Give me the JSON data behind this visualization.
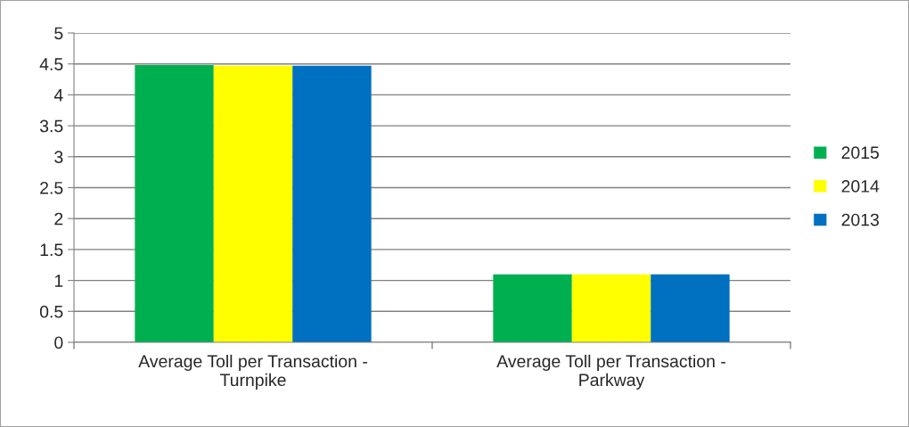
{
  "chart_data": {
    "type": "bar",
    "categories": [
      "Average Toll per Transaction -\nTurnpike",
      "Average Toll per Transaction -\nParkway"
    ],
    "series": [
      {
        "name": "2015",
        "color": "#00b050",
        "values": [
          4.48,
          1.1
        ]
      },
      {
        "name": "2014",
        "color": "#ffff00",
        "values": [
          4.47,
          1.1
        ]
      },
      {
        "name": "2013",
        "color": "#0070c0",
        "values": [
          4.47,
          1.1
        ]
      }
    ],
    "ylim": [
      0,
      5
    ],
    "yticks": [
      0,
      0.5,
      1,
      1.5,
      2,
      2.5,
      3,
      3.5,
      4,
      4.5,
      5
    ],
    "grid": "y",
    "legend": "right"
  }
}
